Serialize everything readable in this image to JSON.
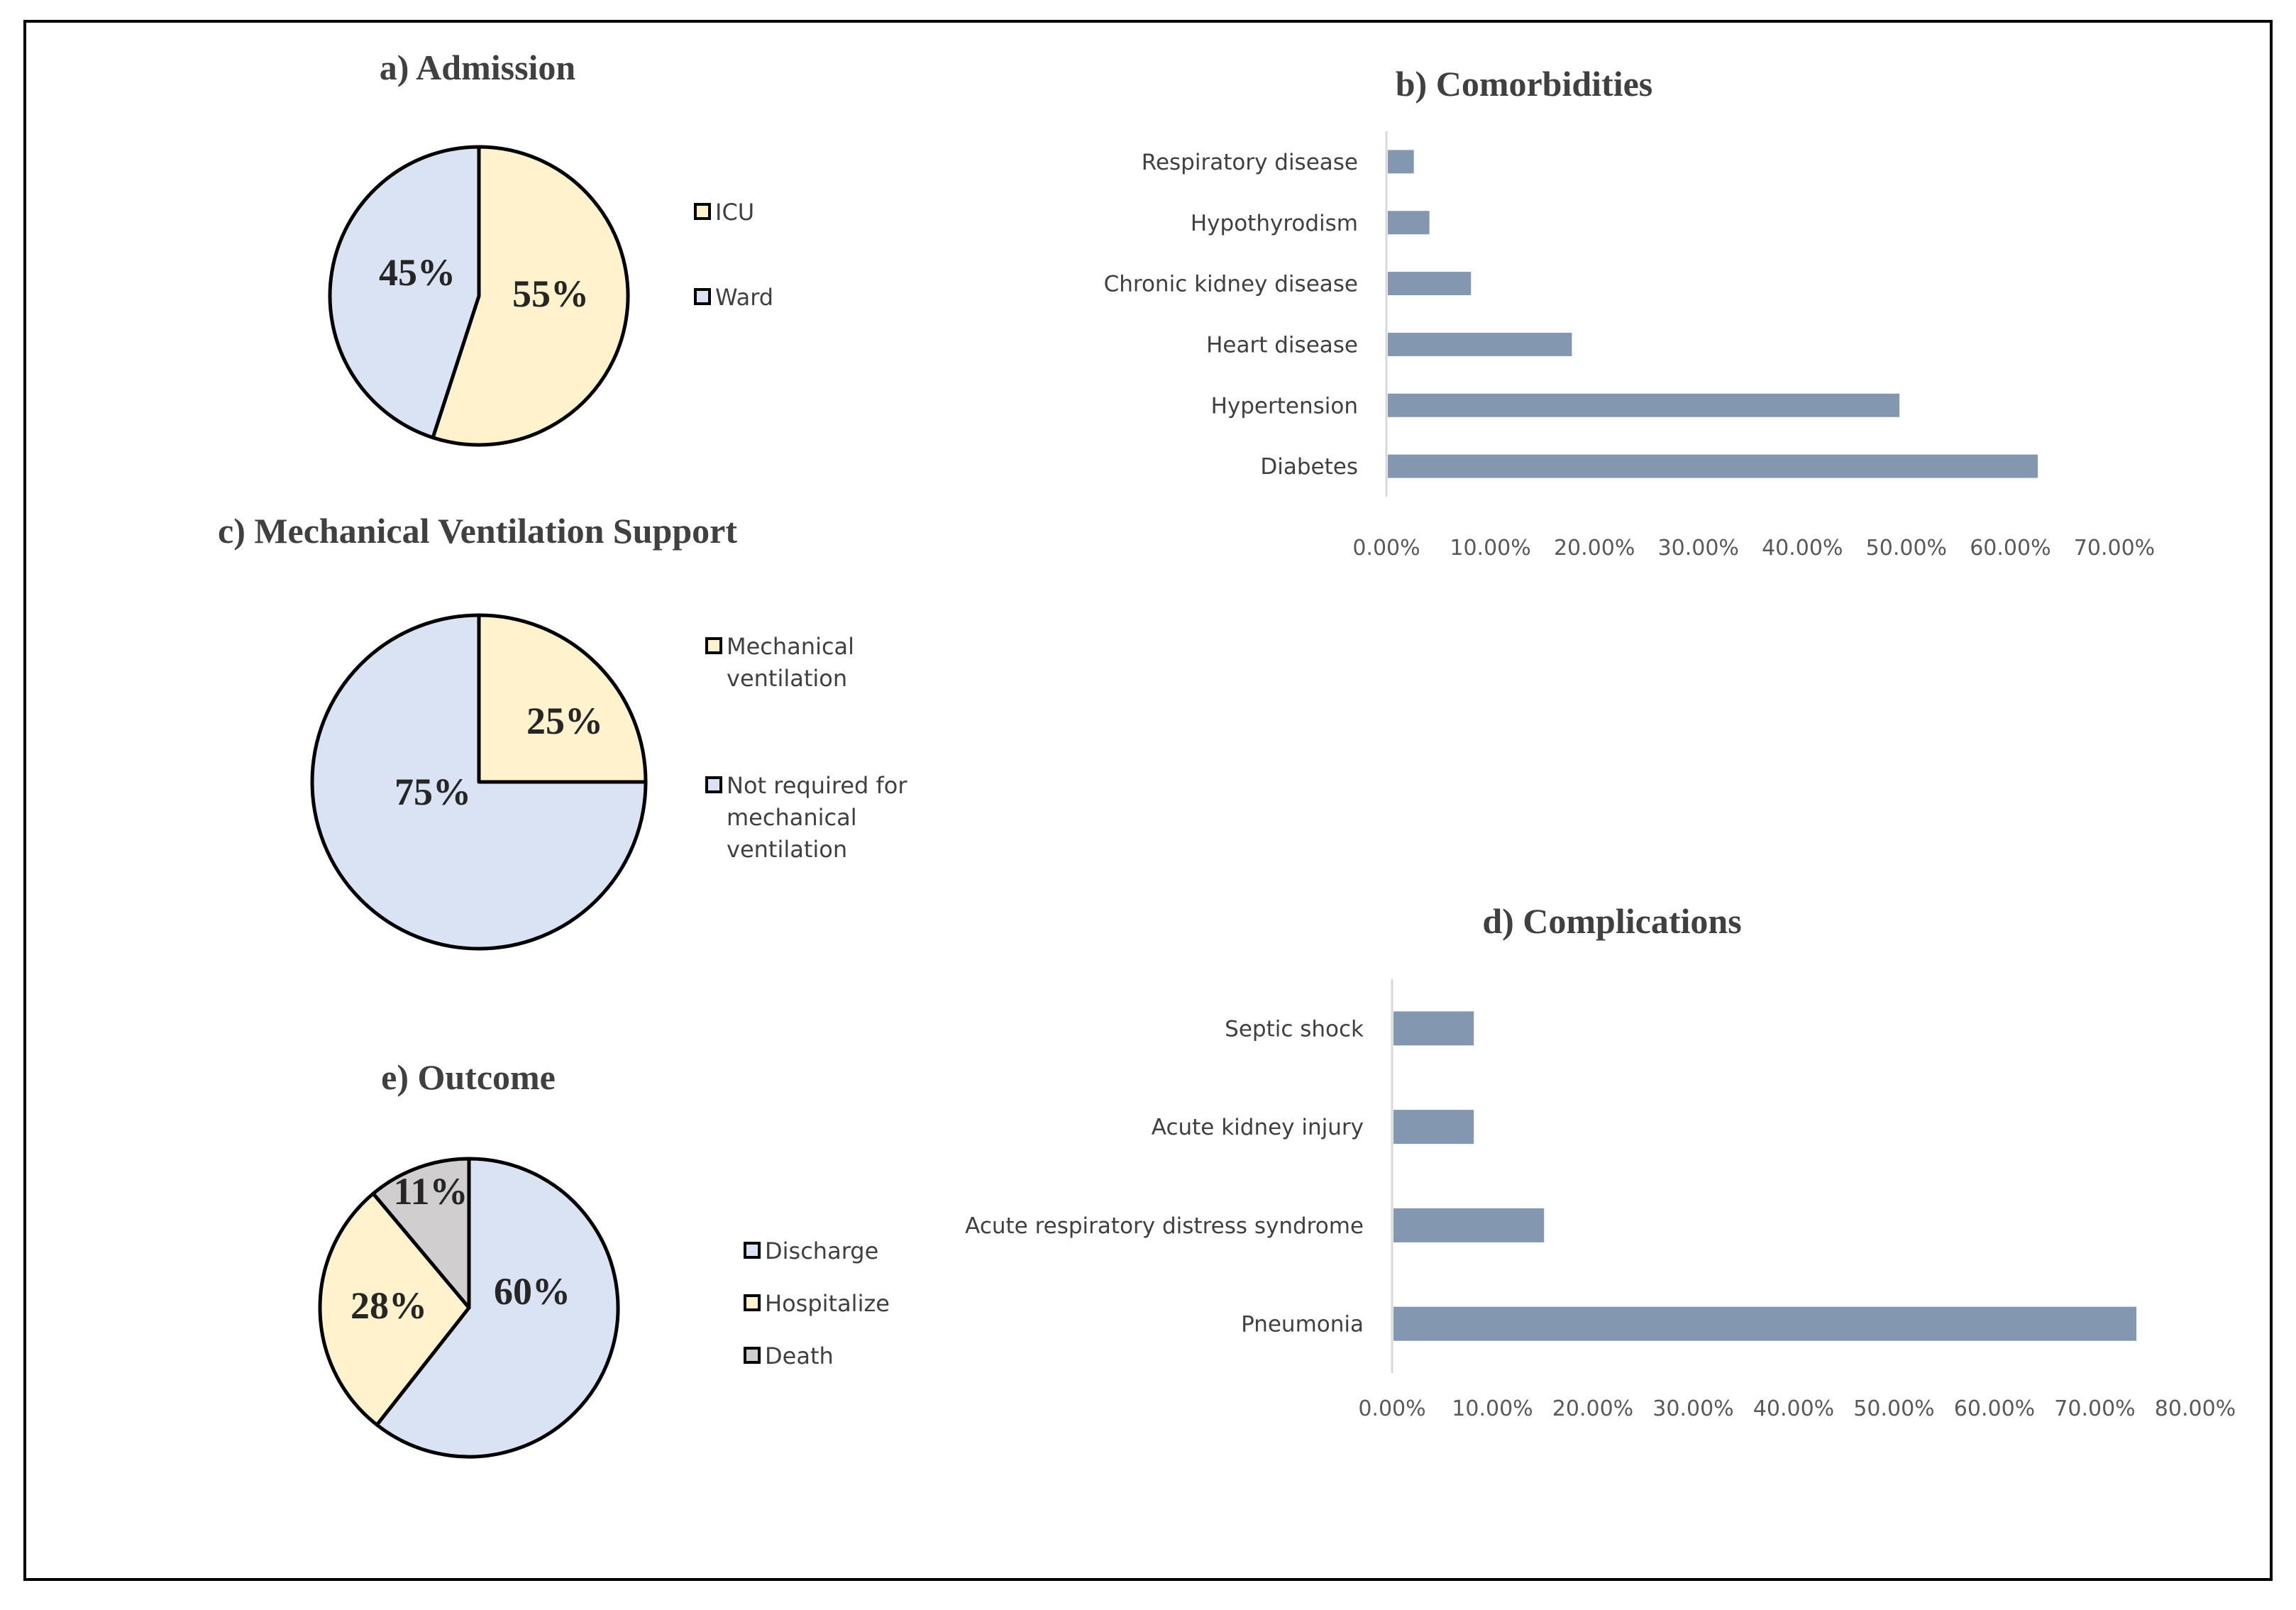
{
  "colors": {
    "yellow": "#FFF2CC",
    "blue": "#DAE3F3",
    "gray": "#D0CECE",
    "bar": "#8497B0",
    "axis": "#D9D9D9",
    "title": "#404040"
  },
  "chart_data": [
    {
      "id": "admission",
      "type": "pie",
      "title": "a) Admission",
      "slices": [
        {
          "name": "ICU",
          "value": 55,
          "label": "55%",
          "color_key": "yellow"
        },
        {
          "name": "Ward",
          "value": 45,
          "label": "45%",
          "color_key": "blue"
        }
      ],
      "legend": [
        {
          "text": "ICU",
          "color_key": "yellow"
        },
        {
          "text": "Ward",
          "color_key": "blue"
        }
      ]
    },
    {
      "id": "comorbidities",
      "type": "bar",
      "orientation": "horizontal",
      "title": "b) Comorbidities",
      "categories": [
        "Respiratory disease",
        "Hypothyrodism",
        "Chronic kidney disease",
        "Heart disease",
        "Hypertension",
        "Diabetes"
      ],
      "values": [
        2.5,
        4,
        8,
        17.7,
        49.2,
        62.5
      ],
      "xlim": [
        0,
        70
      ],
      "ticks": [
        "0.00%",
        "10.00%",
        "20.00%",
        "30.00%",
        "40.00%",
        "50.00%",
        "60.00%",
        "70.00%"
      ]
    },
    {
      "id": "ventilation",
      "type": "pie",
      "title": "c) Mechanical Ventilation  Support",
      "slices": [
        {
          "name": "Mechanical ventilation",
          "value": 25,
          "label": "25%",
          "color_key": "yellow"
        },
        {
          "name": "Not required for mechanical ventilation",
          "value": 75,
          "label": "75%",
          "color_key": "blue"
        }
      ],
      "legend": [
        {
          "text": "Mechanical ventilation",
          "lines": [
            "Mechanical",
            "ventilation"
          ],
          "color_key": "yellow"
        },
        {
          "text": "Not required for mechanical ventilation",
          "lines": [
            "Not required for",
            "mechanical",
            "ventilation"
          ],
          "color_key": "blue"
        }
      ]
    },
    {
      "id": "complications",
      "type": "bar",
      "orientation": "horizontal",
      "title": "d) Complications",
      "categories": [
        "Septic shock",
        "Acute kidney injury",
        "Acute respiratory distress syndrome",
        "Pneumonia"
      ],
      "values": [
        8,
        8,
        15,
        74
      ],
      "xlim": [
        0,
        80
      ],
      "ticks": [
        "0.00%",
        "10.00%",
        "20.00%",
        "30.00%",
        "40.00%",
        "50.00%",
        "60.00%",
        "70.00%",
        "80.00%"
      ]
    },
    {
      "id": "outcome",
      "type": "pie",
      "title": "e) Outcome",
      "slices": [
        {
          "name": "Discharge",
          "value": 60,
          "label": "60%",
          "color_key": "blue"
        },
        {
          "name": "Hospitalize",
          "value": 28,
          "label": "28%",
          "color_key": "yellow"
        },
        {
          "name": "Death",
          "value": 11,
          "label": "11%",
          "color_key": "gray"
        }
      ],
      "legend": [
        {
          "text": "Discharge",
          "color_key": "blue"
        },
        {
          "text": "Hospitalize",
          "color_key": "yellow"
        },
        {
          "text": "Death",
          "color_key": "gray"
        }
      ]
    }
  ]
}
